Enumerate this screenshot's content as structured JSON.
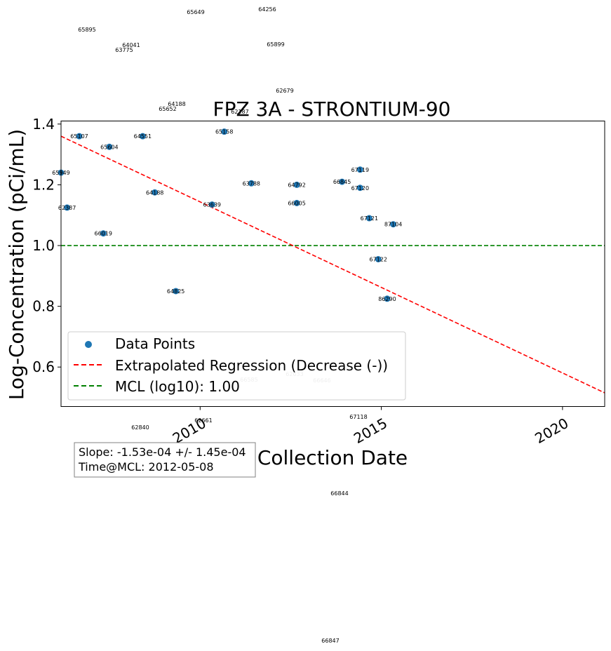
{
  "chart_data": {
    "type": "scatter",
    "title": "FPZ  3A - STRONTIUM-90",
    "xlabel": "Collection Date",
    "ylabel": "Log-Concentration (pCi/mL)",
    "xlim": [
      "2006-03-01",
      "2021-03-01"
    ],
    "ylim": [
      0.47,
      1.41
    ],
    "x_ticks": [
      "2010",
      "2015",
      "2020"
    ],
    "y_ticks": [
      "0.6",
      "0.8",
      "1.0",
      "1.2",
      "1.4"
    ],
    "grid": false,
    "legend_position": "lower-left",
    "points": [
      {
        "id": "65107",
        "date": "2006-09-01",
        "y": 1.36
      },
      {
        "id": "65604",
        "date": "2007-07-01",
        "y": 1.325
      },
      {
        "id": "64551",
        "date": "2008-06-01",
        "y": 1.36
      },
      {
        "id": "65949",
        "date": "2006-03-01",
        "y": 1.24
      },
      {
        "id": "62387",
        "date": "2006-05-01",
        "y": 1.125
      },
      {
        "id": "66019",
        "date": "2007-05-01",
        "y": 1.04
      },
      {
        "id": "64188",
        "date": "2008-10-01",
        "y": 1.175
      },
      {
        "id": "64825",
        "date": "2009-05-01",
        "y": 0.85
      },
      {
        "id": "63639",
        "date": "2010-05-01",
        "y": 1.135
      },
      {
        "id": "65158",
        "date": "2010-09-01",
        "y": 1.375
      },
      {
        "id": "63788",
        "date": "2011-06-01",
        "y": 1.205
      },
      {
        "id": "64792",
        "date": "2012-09-01",
        "y": 1.2
      },
      {
        "id": "66005",
        "date": "2012-09-01",
        "y": 1.14
      },
      {
        "id": "66845",
        "date": "2013-12-01",
        "y": 1.21
      },
      {
        "id": "67119",
        "date": "2014-06-01",
        "y": 1.25
      },
      {
        "id": "67120",
        "date": "2014-06-01",
        "y": 1.19
      },
      {
        "id": "67121",
        "date": "2014-09-01",
        "y": 1.09
      },
      {
        "id": "87104",
        "date": "2015-05-01",
        "y": 1.07
      },
      {
        "id": "67122",
        "date": "2014-12-01",
        "y": 0.955
      },
      {
        "id": "86290",
        "date": "2015-03-01",
        "y": 0.825
      }
    ],
    "outside_labels": [
      {
        "id": "65649"
      },
      {
        "id": "64256"
      },
      {
        "id": "65895"
      },
      {
        "id": "64041"
      },
      {
        "id": "63775"
      },
      {
        "id": "65899"
      },
      {
        "id": "62679"
      },
      {
        "id": "64188"
      },
      {
        "id": "65652"
      },
      {
        "id": "62187"
      },
      {
        "id": "62661"
      },
      {
        "id": "62840"
      },
      {
        "id": "67118"
      },
      {
        "id": "66844"
      },
      {
        "id": "66847"
      }
    ],
    "faint_labels": [
      {
        "id": "66585"
      },
      {
        "id": "62633"
      },
      {
        "id": "66646"
      },
      {
        "id": "62107"
      }
    ],
    "regression": {
      "label": "Extrapolated Regression (Decrease (-))",
      "start": {
        "date": "2006-03-01",
        "y": 1.36
      },
      "end": {
        "date": "2021-03-01",
        "y": 0.515
      },
      "color": "#ff0000"
    },
    "mcl": {
      "label": "MCL (log10): 1.00",
      "y": 1.0,
      "color": "#008000"
    },
    "legend": {
      "points_label": "Data Points"
    },
    "stats": {
      "slope": "Slope: -1.53e-04 +/- 1.45e-04",
      "time_at_mcl": "Time@MCL: 2012-05-08"
    },
    "point_color": "#1f77b4"
  }
}
